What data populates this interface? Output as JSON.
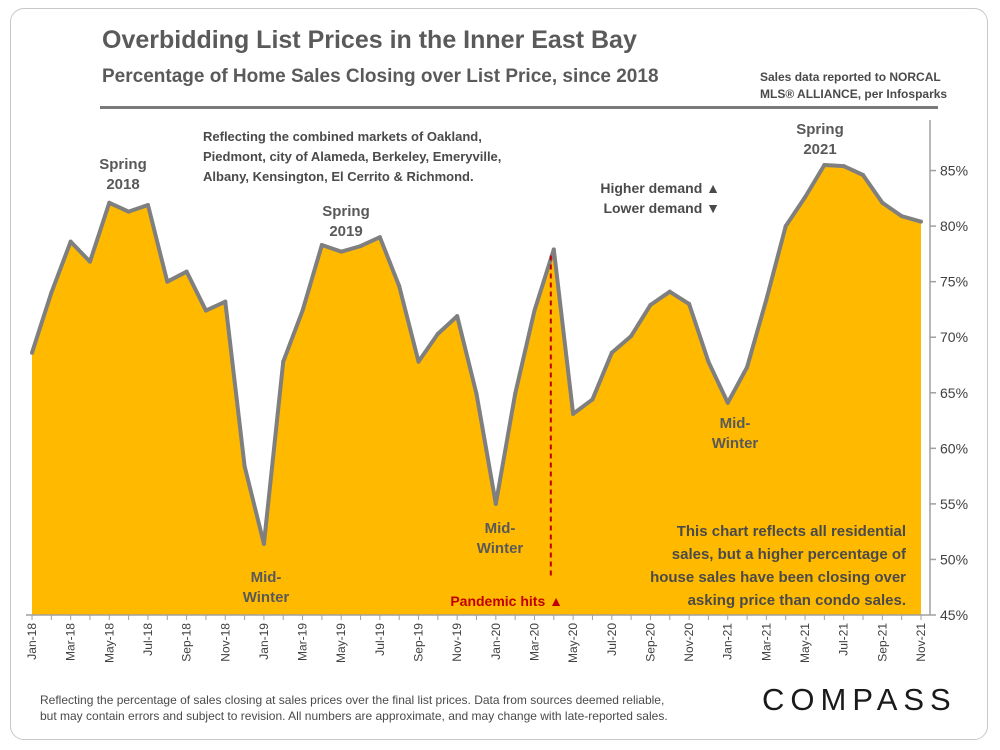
{
  "header": {
    "title": "Overbidding List Prices in the Inner East Bay",
    "subtitle": "Percentage of Home Sales Closing over List Price, since 2018",
    "source_line1": "Sales data reported to NORCAL",
    "source_line2": "MLS® ALLIANCE, per Infosparks"
  },
  "footer": {
    "line1": "Reflecting the percentage of sales closing at sales prices over the final list prices. Data from sources deemed reliable,",
    "line2": "but may contain errors and subject to revision. All numbers are approximate, and may change with late-reported sales."
  },
  "brand": {
    "logo_text": "COMPASS"
  },
  "colors": {
    "fill": "#FFBA00",
    "line": "#7f7f7f",
    "pandemic": "#C00000",
    "text": "#595959",
    "annotation_text": "#4a4a4a"
  },
  "annotations": {
    "markets_note": [
      "Reflecting the combined markets of Oakland,",
      "Piedmont, city of Alameda, Berkeley, Emeryville,",
      "Albany, Kensington, El Cerrito & Richmond."
    ],
    "spring2018": [
      "Spring",
      "2018"
    ],
    "spring2019": [
      "Spring",
      "2019"
    ],
    "spring2021": [
      "Spring",
      "2021"
    ],
    "midwinter1": [
      "Mid-",
      "Winter"
    ],
    "midwinter2": [
      "Mid-",
      "Winter"
    ],
    "midwinter3": [
      "Mid-",
      "Winter"
    ],
    "higher_demand": "Higher demand ▲",
    "lower_demand": "Lower demand ▼",
    "pandemic": "Pandemic hits ▲",
    "condo_note": [
      "This chart reflects all residential",
      "sales, but a higher percentage of",
      "house sales have been closing over",
      "asking price than condo sales."
    ]
  },
  "chart_data": {
    "type": "area",
    "title": "Percentage of Home Sales Closing over List Price, since 2018",
    "xlabel": "",
    "ylabel": "",
    "ylim": [
      45,
      90
    ],
    "yticks": [
      45,
      50,
      55,
      60,
      65,
      70,
      75,
      80,
      85
    ],
    "ytick_labels": [
      "45%",
      "50%",
      "55%",
      "60%",
      "65%",
      "70%",
      "75%",
      "80%",
      "85%"
    ],
    "axis_position": "right",
    "categories": [
      "Jan-18",
      "Feb-18",
      "Mar-18",
      "Apr-18",
      "May-18",
      "Jun-18",
      "Jul-18",
      "Aug-18",
      "Sep-18",
      "Oct-18",
      "Nov-18",
      "Dec-18",
      "Jan-19",
      "Feb-19",
      "Mar-19",
      "Apr-19",
      "May-19",
      "Jun-19",
      "Jul-19",
      "Aug-19",
      "Sep-19",
      "Oct-19",
      "Nov-19",
      "Dec-19",
      "Jan-20",
      "Feb-20",
      "Mar-20",
      "Apr-20",
      "May-20",
      "Jun-20",
      "Jul-20",
      "Aug-20",
      "Sep-20",
      "Oct-20",
      "Nov-20",
      "Dec-20",
      "Jan-21",
      "Feb-21",
      "Mar-21",
      "Apr-21",
      "May-21",
      "Jun-21",
      "Jul-21",
      "Aug-21",
      "Sep-21",
      "Oct-21",
      "Nov-21"
    ],
    "shown_tick_labels": [
      "Jan-18",
      "Mar-18",
      "May-18",
      "Jul-18",
      "Sep-18",
      "Nov-18",
      "Jan-19",
      "Mar-19",
      "May-19",
      "Jul-19",
      "Sep-19",
      "Nov-19",
      "Jan-20",
      "Mar-20",
      "May-20",
      "Jul-20",
      "Sep-20",
      "Nov-20",
      "Jan-21",
      "Mar-21",
      "May-21",
      "Jul-21",
      "Sep-21",
      "Nov-21"
    ],
    "series": [
      {
        "name": "Percentage of sales closing over list price",
        "values": [
          68.6,
          74.0,
          78.6,
          76.8,
          82.1,
          81.3,
          81.9,
          75.0,
          75.9,
          72.4,
          73.2,
          58.4,
          51.4,
          67.8,
          72.4,
          78.3,
          77.7,
          78.2,
          79.0,
          74.6,
          67.8,
          70.3,
          71.9,
          64.9,
          55.0,
          64.9,
          72.4,
          77.9,
          63.1,
          64.4,
          68.6,
          70.1,
          72.9,
          74.1,
          73.0,
          67.8,
          64.1,
          67.3,
          73.4,
          80.0,
          82.6,
          85.5,
          85.4,
          84.6,
          82.1,
          80.9,
          80.4
        ]
      }
    ],
    "pandemic_marker_category": "Apr-20",
    "grid": false,
    "legend": "none"
  }
}
